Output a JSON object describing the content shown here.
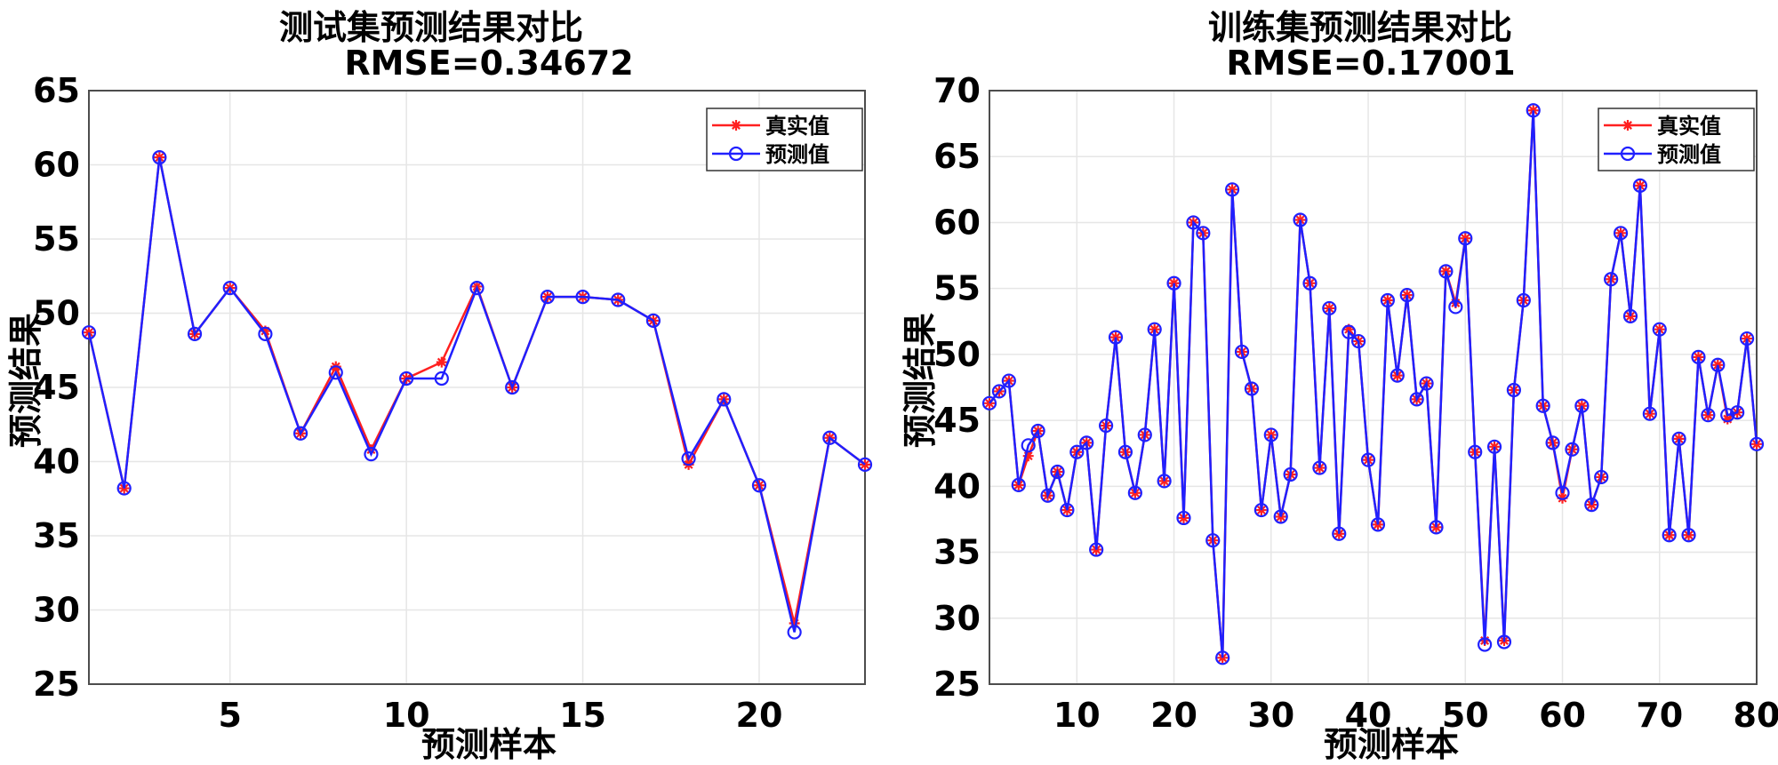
{
  "chart_data": [
    {
      "type": "line",
      "title": "测试集预测结果对比",
      "subtitle": "RMSE=0.34672",
      "xlabel": "预测样本",
      "ylabel": "预测结果",
      "xlim": [
        1,
        23
      ],
      "ylim": [
        25,
        65
      ],
      "xticks": [
        5,
        10,
        15,
        20
      ],
      "yticks": [
        25,
        30,
        35,
        40,
        45,
        50,
        55,
        60,
        65
      ],
      "grid": true,
      "legend_position": "top-right",
      "x": [
        1,
        2,
        3,
        4,
        5,
        6,
        7,
        8,
        9,
        10,
        11,
        12,
        13,
        14,
        15,
        16,
        17,
        18,
        19,
        20,
        21,
        22,
        23
      ],
      "series": [
        {
          "name": "真实值",
          "color": "#ff2020",
          "marker": "asterisk",
          "values": [
            48.7,
            38.2,
            60.5,
            48.6,
            51.7,
            48.8,
            41.9,
            46.4,
            40.8,
            45.6,
            46.7,
            51.8,
            45.0,
            51.1,
            51.1,
            50.9,
            49.5,
            39.8,
            44.2,
            38.4,
            29.1,
            41.6,
            39.8
          ]
        },
        {
          "name": "预测值",
          "color": "#2020ff",
          "marker": "circle",
          "values": [
            48.7,
            38.2,
            60.5,
            48.6,
            51.7,
            48.6,
            41.9,
            46.0,
            40.5,
            45.6,
            45.6,
            51.7,
            45.0,
            51.1,
            51.1,
            50.9,
            49.5,
            40.2,
            44.2,
            38.4,
            28.5,
            41.6,
            39.8
          ]
        }
      ]
    },
    {
      "type": "line",
      "title": "训练集预测结果对比",
      "subtitle": "RMSE=0.17001",
      "xlabel": "预测样本",
      "ylabel": "预测结果",
      "xlim": [
        1,
        80
      ],
      "ylim": [
        25,
        70
      ],
      "xticks": [
        10,
        20,
        30,
        40,
        50,
        60,
        70,
        80
      ],
      "yticks": [
        25,
        30,
        35,
        40,
        45,
        50,
        55,
        60,
        65,
        70
      ],
      "grid": true,
      "legend_position": "top-right",
      "x": [
        1,
        2,
        3,
        4,
        5,
        6,
        7,
        8,
        9,
        10,
        11,
        12,
        13,
        14,
        15,
        16,
        17,
        18,
        19,
        20,
        21,
        22,
        23,
        24,
        25,
        26,
        27,
        28,
        29,
        30,
        31,
        32,
        33,
        34,
        35,
        36,
        37,
        38,
        39,
        40,
        41,
        42,
        43,
        44,
        45,
        46,
        47,
        48,
        49,
        50,
        51,
        52,
        53,
        54,
        55,
        56,
        57,
        58,
        59,
        60,
        61,
        62,
        63,
        64,
        65,
        66,
        67,
        68,
        69,
        70,
        71,
        72,
        73,
        74,
        75,
        76,
        77,
        78,
        79,
        80
      ],
      "series": [
        {
          "name": "真实值",
          "color": "#ff2020",
          "marker": "asterisk",
          "values": [
            46.3,
            47.2,
            48.0,
            40.1,
            42.3,
            44.2,
            39.3,
            41.1,
            38.2,
            42.6,
            43.3,
            35.2,
            44.6,
            51.3,
            42.6,
            39.5,
            43.9,
            51.9,
            40.4,
            55.4,
            37.6,
            60.0,
            59.2,
            35.9,
            27.0,
            62.5,
            50.2,
            47.4,
            38.2,
            43.9,
            37.7,
            40.9,
            60.2,
            55.4,
            41.4,
            53.5,
            36.4,
            51.9,
            51.0,
            42.0,
            37.1,
            54.1,
            48.4,
            54.5,
            46.6,
            47.8,
            36.9,
            56.3,
            53.9,
            58.8,
            42.6,
            28.3,
            43.0,
            28.3,
            47.3,
            54.1,
            68.5,
            46.1,
            43.3,
            39.1,
            42.8,
            46.1,
            38.6,
            40.7,
            55.7,
            59.2,
            52.9,
            62.8,
            45.5,
            51.9,
            36.3,
            43.6,
            36.3,
            49.8,
            45.4,
            49.2,
            45.1,
            45.6,
            51.2,
            43.2
          ]
        },
        {
          "name": "预测值",
          "color": "#2020ff",
          "marker": "circle",
          "values": [
            46.3,
            47.2,
            48.0,
            40.1,
            43.1,
            44.2,
            39.3,
            41.1,
            38.2,
            42.6,
            43.3,
            35.2,
            44.6,
            51.3,
            42.6,
            39.5,
            43.9,
            51.9,
            40.4,
            55.4,
            37.6,
            60.0,
            59.2,
            35.9,
            27.0,
            62.5,
            50.2,
            47.4,
            38.2,
            43.9,
            37.7,
            40.9,
            60.2,
            55.4,
            41.4,
            53.5,
            36.4,
            51.7,
            51.0,
            42.0,
            37.1,
            54.1,
            48.4,
            54.5,
            46.6,
            47.8,
            36.9,
            56.3,
            53.6,
            58.8,
            42.6,
            28.0,
            43.0,
            28.2,
            47.3,
            54.1,
            68.5,
            46.1,
            43.3,
            39.5,
            42.8,
            46.1,
            38.6,
            40.7,
            55.7,
            59.2,
            52.9,
            62.8,
            45.5,
            51.9,
            36.3,
            43.6,
            36.3,
            49.8,
            45.4,
            49.2,
            45.4,
            45.6,
            51.2,
            43.2
          ]
        }
      ]
    }
  ]
}
